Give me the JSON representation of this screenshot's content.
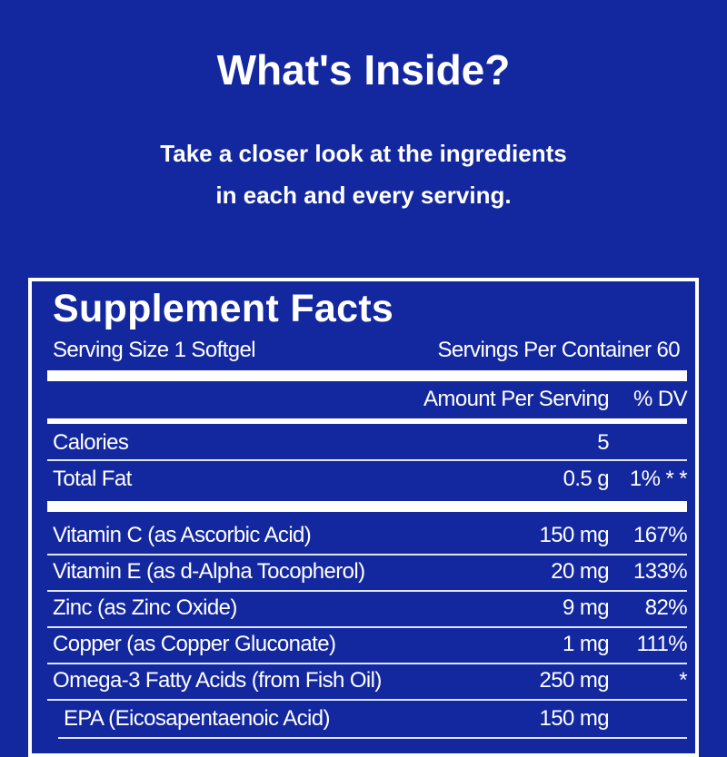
{
  "heading": "What's Inside?",
  "subheading_line1": "Take a closer look at the ingredients",
  "subheading_line2": "in each and every serving.",
  "facts": {
    "title": "Supplement Facts",
    "serving_size": "Serving Size 1 Softgel",
    "servings_per_container": "Servings Per Container 60",
    "amount_header": "Amount Per Serving",
    "dv_header": "% DV",
    "top_rows": [
      {
        "name": "Calories",
        "amount": "5",
        "dv": ""
      },
      {
        "name": "Total Fat",
        "amount": "0.5 g",
        "dv": "1% * *"
      }
    ],
    "rows": [
      {
        "name": "Vitamin C (as Ascorbic Acid)",
        "amount": "150 mg",
        "dv": "167%"
      },
      {
        "name": "Vitamin E (as d-Alpha Tocopherol)",
        "amount": "20 mg",
        "dv": "133%"
      },
      {
        "name": "Zinc (as Zinc Oxide)",
        "amount": "9 mg",
        "dv": "82%"
      },
      {
        "name": "Copper (as Copper Gluconate)",
        "amount": "1 mg",
        "dv": "111%"
      },
      {
        "name": "Omega-3 Fatty Acids (from Fish Oil)",
        "amount": "250 mg",
        "dv": "*"
      },
      {
        "name": "EPA (Eicosapentaenoic Acid)",
        "amount": "150 mg",
        "dv": ""
      }
    ]
  },
  "colors": {
    "background": "#13279f",
    "text": "#ffffff"
  }
}
